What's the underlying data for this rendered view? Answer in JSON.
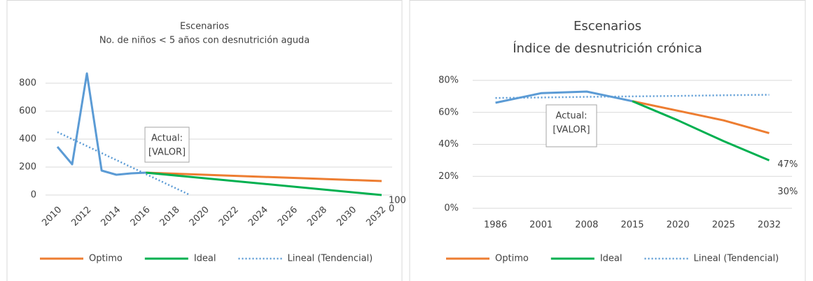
{
  "chart_data": [
    {
      "type": "line",
      "title": "Escenarios",
      "subtitle": "No. de niños < 5 años con desnutrición aguda",
      "annotation": [
        "Actual:",
        "[VALOR]"
      ],
      "xlim": [
        2010,
        2032
      ],
      "xticks": [
        2010,
        2012,
        2014,
        2016,
        2018,
        2020,
        2022,
        2024,
        2026,
        2028,
        2030,
        2032
      ],
      "ylim": [
        0,
        900
      ],
      "yticks": [
        0,
        200,
        400,
        600,
        800
      ],
      "grid": true,
      "series": [
        {
          "color": "#5b9bd5",
          "x": [
            2010,
            2011,
            2012,
            2013,
            2014,
            2015,
            2016
          ],
          "values": [
            345,
            220,
            870,
            175,
            145,
            155,
            160
          ]
        },
        {
          "name": "Optimo",
          "color": "#ed7d31",
          "x": [
            2016,
            2032
          ],
          "values": [
            160,
            100
          ],
          "data_labels": "last"
        },
        {
          "name": "Ideal",
          "color": "#00b050",
          "x": [
            2016,
            2032
          ],
          "values": [
            160,
            0
          ],
          "data_labels": "last"
        },
        {
          "name": "Lineal (Tendencial)",
          "color": "#5b9bd5",
          "dash": "dotted",
          "x": [
            2010,
            2019
          ],
          "values": [
            450,
            0
          ]
        }
      ]
    },
    {
      "type": "line",
      "title": "Escenarios",
      "subtitle": "Índice de desnutrición crónica",
      "annotation": [
        "Actual:",
        "[VALOR]"
      ],
      "categories": [
        "1986",
        "2001",
        "2008",
        "2015",
        "2020",
        "2025",
        "2032"
      ],
      "ylim": [
        0,
        80
      ],
      "yticks": [
        {
          "value": 0,
          "label": "0%"
        },
        {
          "value": 20,
          "label": "20%"
        },
        {
          "value": 40,
          "label": "40%"
        },
        {
          "value": 60,
          "label": "60%"
        },
        {
          "value": 80,
          "label": "80%"
        }
      ],
      "grid": true,
      "series": [
        {
          "color": "#5b9bd5",
          "values": [
            66,
            72,
            73,
            67,
            null,
            null,
            null
          ]
        },
        {
          "name": "Optimo",
          "color": "#ed7d31",
          "values": [
            null,
            null,
            null,
            67,
            61,
            55,
            47
          ],
          "value_labels": [
            null,
            null,
            null,
            null,
            null,
            null,
            "47%"
          ]
        },
        {
          "name": "Ideal",
          "color": "#00b050",
          "values": [
            null,
            null,
            null,
            67,
            55,
            42,
            30
          ],
          "value_labels": [
            null,
            null,
            null,
            null,
            null,
            null,
            "30%"
          ]
        },
        {
          "name": "Lineal (Tendencial)",
          "color": "#5b9bd5",
          "dash": "dotted",
          "values": [
            69,
            69.3,
            69.7,
            70,
            70.3,
            70.7,
            71
          ]
        }
      ]
    }
  ]
}
